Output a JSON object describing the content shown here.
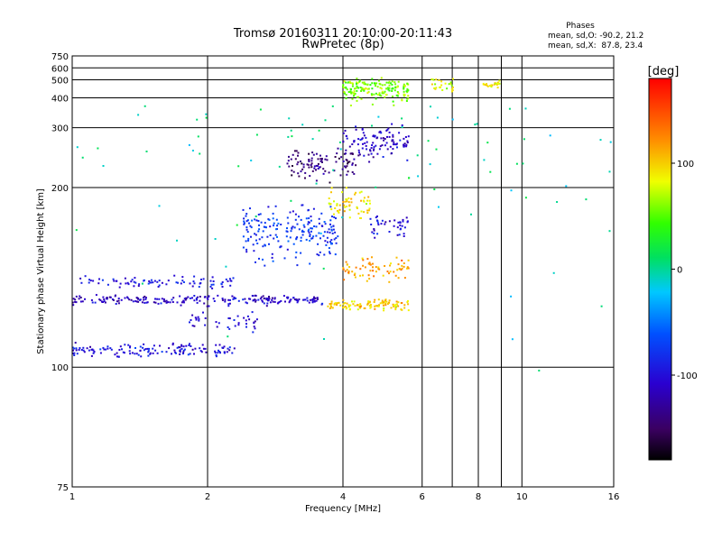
{
  "header": {
    "title": "Tromsø 20160311 20:10:00-20:11:43",
    "subtitle": "RwPretec (8p)"
  },
  "phase_box": {
    "heading": "Phases",
    "line_o": "mean, sd,O: -90.2, 21.2",
    "line_x": "mean, sd,X:  87.8, 23.4"
  },
  "colorbar": {
    "unit_label": "[deg]",
    "range": [
      -180,
      180
    ],
    "ticks": [
      {
        "value": 100,
        "label": "100"
      },
      {
        "value": 0,
        "label": "0"
      },
      {
        "value": -100,
        "label": "-100"
      }
    ]
  },
  "chart_data": {
    "type": "scatter",
    "xlabel": "Frequency [MHz]",
    "ylabel": "Stationary phase Virtual Height [km]",
    "xscale": "log",
    "yscale": "reciprocal",
    "xlim": [
      1,
      16
    ],
    "ylim": [
      75,
      750
    ],
    "grid": true,
    "x_ticks": [
      {
        "value": 1,
        "label": "1"
      },
      {
        "value": 2,
        "label": "2"
      },
      {
        "value": 4,
        "label": "4"
      },
      {
        "value": 6,
        "label": "6"
      },
      {
        "value": 8,
        "label": "8"
      },
      {
        "value": 10,
        "label": "10"
      },
      {
        "value": 16,
        "label": "16"
      }
    ],
    "x_grid_extra": [
      7,
      9
    ],
    "y_ticks": [
      {
        "value": 75,
        "label": "75"
      },
      {
        "value": 100,
        "label": "100"
      },
      {
        "value": 200,
        "label": "200"
      },
      {
        "value": 300,
        "label": "300"
      },
      {
        "value": 400,
        "label": "400"
      },
      {
        "value": 500,
        "label": "500"
      },
      {
        "value": 600,
        "label": "600"
      },
      {
        "value": 750,
        "label": "750"
      }
    ],
    "color_variable": "phase [deg]",
    "point_clusters": [
      {
        "x_range": [
          1.0,
          2.3
        ],
        "y_center": 105,
        "y_spread": 3,
        "phase": -100,
        "count": 140
      },
      {
        "x_range": [
          1.0,
          3.6
        ],
        "y_center": 123,
        "y_spread": 3,
        "phase": -110,
        "count": 220
      },
      {
        "x_range": [
          1.0,
          2.3
        ],
        "y_center": 131,
        "y_spread": 4,
        "phase": -95,
        "count": 80
      },
      {
        "x_range": [
          1.8,
          2.6
        ],
        "y_center": 115,
        "y_spread": 5,
        "phase": -105,
        "count": 40
      },
      {
        "x_range": [
          3.7,
          5.6
        ],
        "y_center": 121,
        "y_spread": 3,
        "phase": 100,
        "count": 110
      },
      {
        "x_range": [
          4.0,
          5.6
        ],
        "y_center": 138,
        "y_spread": 10,
        "phase": 115,
        "count": 70
      },
      {
        "x_range": [
          2.4,
          3.9
        ],
        "y_center": 160,
        "y_spread": 28,
        "phase": -75,
        "count": 200
      },
      {
        "x_range": [
          3.0,
          4.3
        ],
        "y_center": 232,
        "y_spread": 30,
        "phase": -140,
        "count": 100
      },
      {
        "x_range": [
          3.7,
          4.6
        ],
        "y_center": 185,
        "y_spread": 20,
        "phase": 95,
        "count": 60
      },
      {
        "x_range": [
          4.0,
          5.6
        ],
        "y_center": 265,
        "y_spread": 50,
        "phase": -110,
        "count": 110
      },
      {
        "x_range": [
          4.0,
          5.6
        ],
        "y_center": 440,
        "y_spread": 90,
        "phase": 60,
        "count": 160
      },
      {
        "x_range": [
          4.6,
          5.6
        ],
        "y_center": 165,
        "y_spread": 12,
        "phase": -100,
        "count": 40
      },
      {
        "x_range": [
          6.3,
          7.1
        ],
        "y_center": 470,
        "y_spread": 60,
        "phase": 80,
        "count": 25
      },
      {
        "x_range": [
          8.2,
          9.0
        ],
        "y_center": 470,
        "y_spread": 30,
        "phase": 90,
        "count": 20
      },
      {
        "x_range": [
          1.0,
          16.0
        ],
        "y_center": 250,
        "y_spread": 220,
        "phase": 0,
        "count": 90
      }
    ]
  }
}
